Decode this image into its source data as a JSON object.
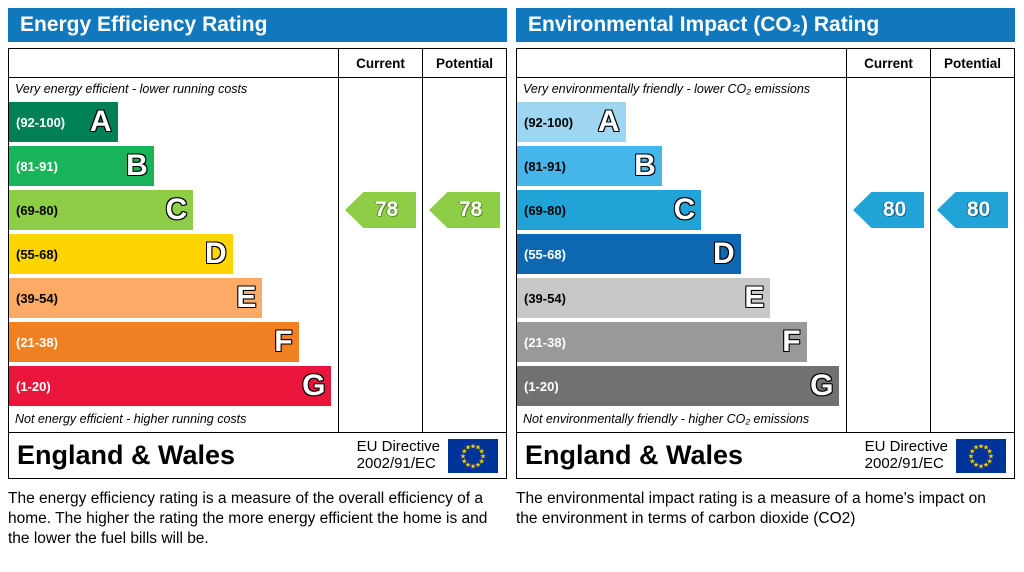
{
  "eu_flag": {
    "background": "#003399",
    "stars": "#ffcc00",
    "star_glyph": "★"
  },
  "panels": [
    {
      "title": "Energy Efficiency Rating",
      "columns": {
        "current": "Current",
        "potential": "Potential"
      },
      "top_caption": "Very energy efficient - lower running costs",
      "bottom_caption": "Not energy efficient - higher running costs",
      "bands": [
        {
          "range": "(92-100)",
          "letter": "A",
          "color": "#008054",
          "text_color": "#ffffff",
          "width_pct": 33
        },
        {
          "range": "(81-91)",
          "letter": "B",
          "color": "#19b459",
          "text_color": "#ffffff",
          "width_pct": 44
        },
        {
          "range": "(69-80)",
          "letter": "C",
          "color": "#8dce46",
          "text_color": "#000000",
          "width_pct": 56
        },
        {
          "range": "(55-68)",
          "letter": "D",
          "color": "#ffd500",
          "text_color": "#000000",
          "width_pct": 68
        },
        {
          "range": "(39-54)",
          "letter": "E",
          "color": "#fcaa65",
          "text_color": "#000000",
          "width_pct": 77
        },
        {
          "range": "(21-38)",
          "letter": "F",
          "color": "#ef8023",
          "text_color": "#ffffff",
          "width_pct": 88
        },
        {
          "range": "(1-20)",
          "letter": "G",
          "color": "#e9153b",
          "text_color": "#ffffff",
          "width_pct": 98
        }
      ],
      "current": {
        "value": "78",
        "color": "#8dce46",
        "row_index": 2
      },
      "potential": {
        "value": "78",
        "color": "#8dce46",
        "row_index": 2
      },
      "footer": {
        "region": "England & Wales",
        "directive_line1": "EU Directive",
        "directive_line2": "2002/91/EC"
      },
      "description": "The energy efficiency rating is a measure of the overall efficiency of a home.  The higher the rating the more energy efficient the home is and the lower the fuel bills will be."
    },
    {
      "title": "Environmental Impact (CO₂) Rating",
      "columns": {
        "current": "Current",
        "potential": "Potential"
      },
      "top_caption": "Very environmentally friendly - lower CO₂ emissions",
      "bottom_caption": "Not environmentally friendly - higher CO₂ emissions",
      "bands": [
        {
          "range": "(92-100)",
          "letter": "A",
          "color": "#9ed6f1",
          "text_color": "#000000",
          "width_pct": 33
        },
        {
          "range": "(81-91)",
          "letter": "B",
          "color": "#45b5ea",
          "text_color": "#000000",
          "width_pct": 44
        },
        {
          "range": "(69-80)",
          "letter": "C",
          "color": "#21a3d8",
          "text_color": "#000000",
          "width_pct": 56
        },
        {
          "range": "(55-68)",
          "letter": "D",
          "color": "#0d68b1",
          "text_color": "#ffffff",
          "width_pct": 68
        },
        {
          "range": "(39-54)",
          "letter": "E",
          "color": "#c8c8c8",
          "text_color": "#000000",
          "width_pct": 77
        },
        {
          "range": "(21-38)",
          "letter": "F",
          "color": "#999999",
          "text_color": "#ffffff",
          "width_pct": 88
        },
        {
          "range": "(1-20)",
          "letter": "G",
          "color": "#717171",
          "text_color": "#ffffff",
          "width_pct": 98
        }
      ],
      "current": {
        "value": "80",
        "color": "#21a3d8",
        "row_index": 2
      },
      "potential": {
        "value": "80",
        "color": "#21a3d8",
        "row_index": 2
      },
      "footer": {
        "region": "England & Wales",
        "directive_line1": "EU Directive",
        "directive_line2": "2002/91/EC"
      },
      "description": "The environmental impact rating is a measure of a home's impact on the environment in terms of carbon dioxide (CO2)"
    }
  ],
  "chart_data": [
    {
      "type": "bar",
      "title": "Energy Efficiency Rating",
      "categories": [
        "A (92-100)",
        "B (81-91)",
        "C (69-80)",
        "D (55-68)",
        "E (39-54)",
        "F (21-38)",
        "G (1-20)"
      ],
      "series": [
        {
          "name": "Current",
          "values": [
            78
          ],
          "band": "C"
        },
        {
          "name": "Potential",
          "values": [
            78
          ],
          "band": "C"
        }
      ],
      "xlabel": "",
      "ylabel": "",
      "ylim": [
        1,
        100
      ],
      "legend_position": "columns-right",
      "grid": false
    },
    {
      "type": "bar",
      "title": "Environmental Impact (CO₂) Rating",
      "categories": [
        "A (92-100)",
        "B (81-91)",
        "C (69-80)",
        "D (55-68)",
        "E (39-54)",
        "F (21-38)",
        "G (1-20)"
      ],
      "series": [
        {
          "name": "Current",
          "values": [
            80
          ],
          "band": "C"
        },
        {
          "name": "Potential",
          "values": [
            80
          ],
          "band": "C"
        }
      ],
      "xlabel": "",
      "ylabel": "",
      "ylim": [
        1,
        100
      ],
      "legend_position": "columns-right",
      "grid": false
    }
  ]
}
